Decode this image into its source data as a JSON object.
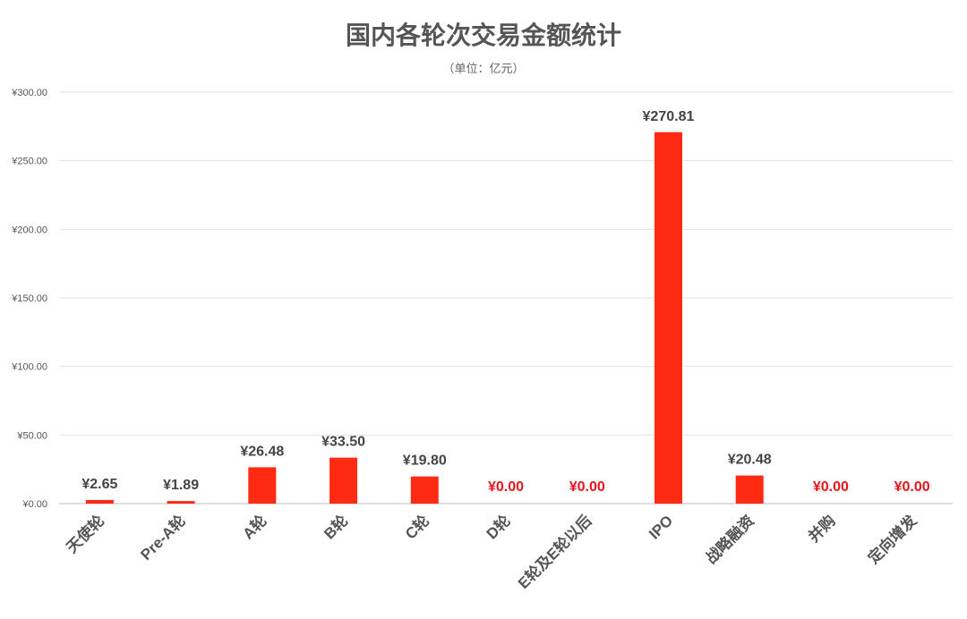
{
  "chart_data": {
    "type": "bar",
    "title": "国内各轮次交易金额统计",
    "subtitle": "（单位：亿元）",
    "categories": [
      "天使轮",
      "Pre-A轮",
      "A轮",
      "B轮",
      "C轮",
      "D轮",
      "E轮及E轮以后",
      "IPO",
      "战略融资",
      "并购",
      "定向增发"
    ],
    "values": [
      2.65,
      1.89,
      26.48,
      33.5,
      19.8,
      0.0,
      0.0,
      270.81,
      20.48,
      0.0,
      0.0
    ],
    "value_labels": [
      "¥2.65",
      "¥1.89",
      "¥26.48",
      "¥33.50",
      "¥19.80",
      "¥0.00",
      "¥0.00",
      "¥270.81",
      "¥20.48",
      "¥0.00",
      "¥0.00"
    ],
    "yticks": [
      "¥0.00",
      "¥50.00",
      "¥100.00",
      "¥150.00",
      "¥200.00",
      "¥250.00",
      "¥300.00"
    ],
    "ylim": [
      0,
      300
    ],
    "grid": true,
    "bar_color": "#ff2a12",
    "zero_label_color": "#e8141b",
    "label_color": "#444444"
  }
}
